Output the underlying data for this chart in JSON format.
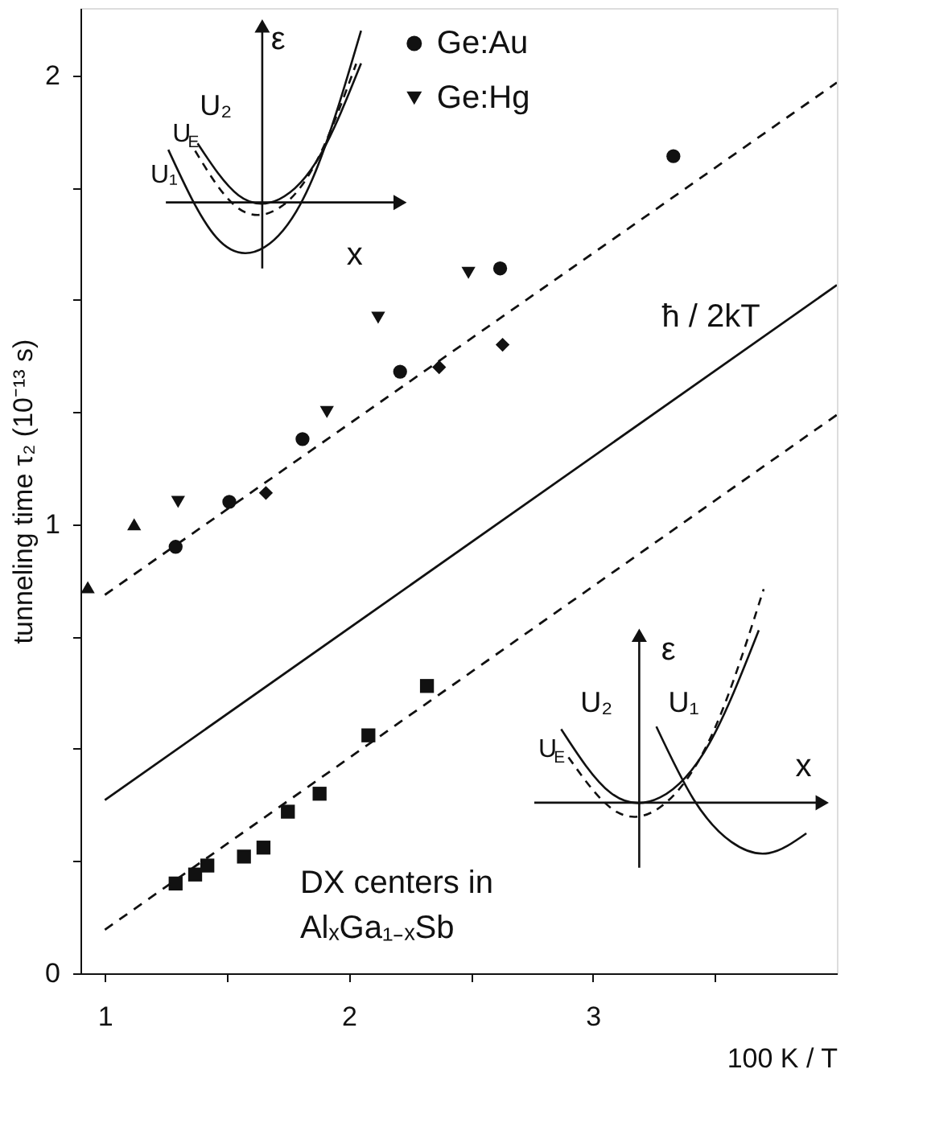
{
  "chart_data": {
    "type": "scatter",
    "xlabel": "100 K / T",
    "ylabel": "tunneling time  τ₂ (10⁻¹³ s)",
    "xlim": [
      0.9,
      4.0
    ],
    "xticks": [
      1,
      {
        "value": 1.5,
        "label": null
      },
      2,
      {
        "value": 2.5,
        "label": null
      },
      3,
      {
        "value": 3.5,
        "label": null
      }
    ],
    "ylim": [
      0,
      2.15
    ],
    "yticks": [
      0,
      {
        "value": 0.25,
        "label": null
      },
      {
        "value": 0.5,
        "label": null
      },
      {
        "value": 0.75,
        "label": null
      },
      1,
      {
        "value": 1.25,
        "label": null
      },
      {
        "value": 1.5,
        "label": null
      },
      {
        "value": 1.75,
        "label": null
      },
      2
    ],
    "grid": false,
    "legend": "top",
    "series": [
      {
        "name": "Ge:Au",
        "color": "#111111",
        "marker": "circle",
        "x": [
          1.29,
          1.51,
          1.81,
          2.21,
          2.62,
          3.33
        ],
        "values": [
          0.95,
          1.05,
          1.19,
          1.34,
          1.57,
          1.82
        ]
      },
      {
        "name": "Ge:Hg",
        "color": "#111111",
        "marker": "triangle-down",
        "x": [
          1.3,
          1.91,
          2.12,
          2.49
        ],
        "values": [
          1.05,
          1.25,
          1.46,
          1.56
        ]
      },
      {
        "color": "#111111",
        "marker": "diamond",
        "x": [
          1.66,
          2.37,
          2.63
        ],
        "values": [
          1.07,
          1.35,
          1.4
        ]
      },
      {
        "color": "#111111",
        "marker": "triangle",
        "x": [
          0.93,
          1.12
        ],
        "values": [
          0.86,
          1.0
        ]
      },
      {
        "color": "#111111",
        "marker": "square",
        "x": [
          1.29,
          1.37,
          1.42,
          1.57,
          1.65,
          1.75,
          1.88,
          2.08,
          2.32
        ],
        "values": [
          0.2,
          0.22,
          0.24,
          0.26,
          0.28,
          0.36,
          0.4,
          0.53,
          0.64
        ]
      },
      {
        "name": "ħ / 2kT",
        "type": "line",
        "line_style": "solid",
        "color": "#111111",
        "x": [
          1,
          4
        ],
        "values": [
          0.386,
          1.533
        ]
      },
      {
        "type": "line",
        "line_style": "dashed",
        "color": "#111111",
        "x": [
          1,
          4
        ],
        "values": [
          0.843,
          1.984
        ]
      },
      {
        "type": "line",
        "line_style": "dashed",
        "color": "#111111",
        "x": [
          1,
          4
        ],
        "values": [
          0.097,
          1.244
        ]
      }
    ],
    "annotations": [
      "DX centers in",
      "AlₓGa₁₋ₓSb",
      "ε",
      "U₂",
      "U$_{E}$",
      "U₁",
      "x",
      "ε",
      "U₂",
      "U₁",
      "U$_{E}$",
      "x"
    ]
  }
}
